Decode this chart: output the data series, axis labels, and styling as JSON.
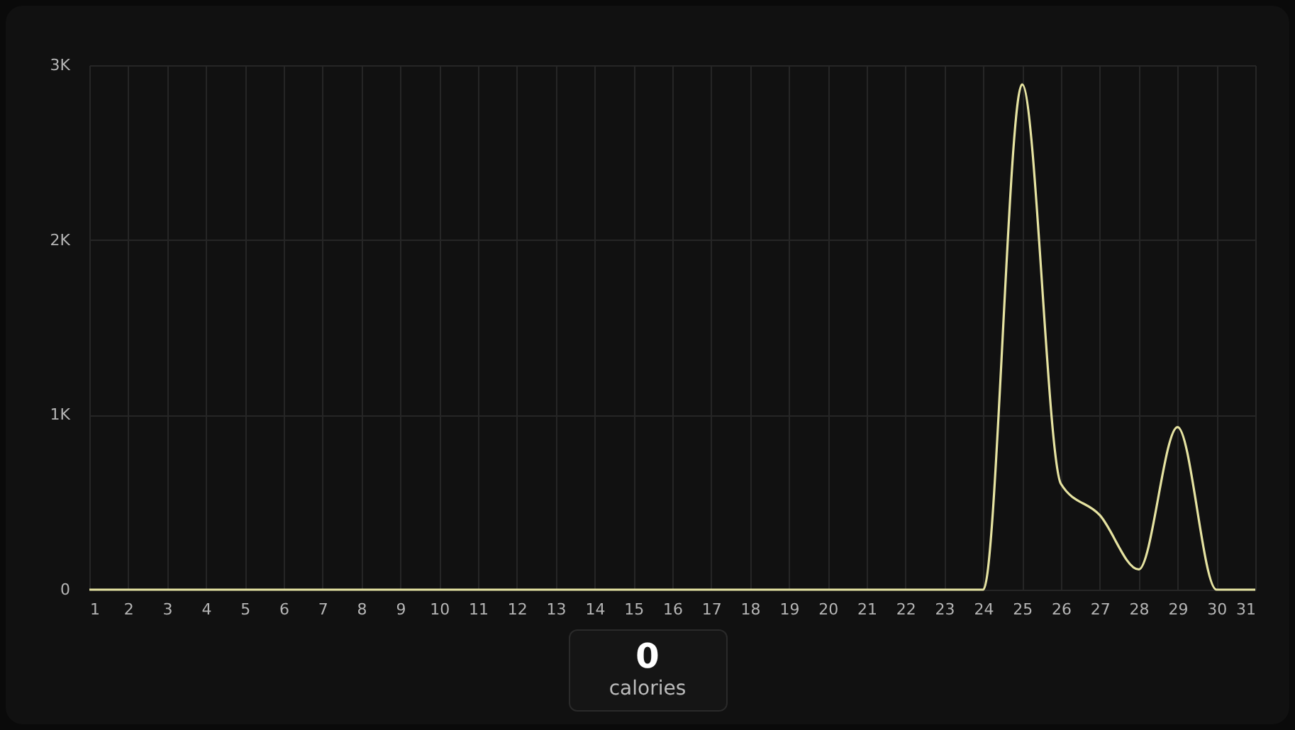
{
  "chart_data": {
    "type": "line",
    "x": [
      1,
      2,
      3,
      4,
      5,
      6,
      7,
      8,
      9,
      10,
      11,
      12,
      13,
      14,
      15,
      16,
      17,
      18,
      19,
      20,
      21,
      22,
      23,
      24,
      25,
      26,
      27,
      28,
      29,
      30,
      31
    ],
    "series": [
      {
        "color": "#e6e3a1",
        "values": [
          0,
          0,
          0,
          0,
          0,
          0,
          0,
          0,
          0,
          0,
          0,
          0,
          0,
          0,
          0,
          0,
          0,
          0,
          0,
          0,
          0,
          0,
          0,
          0,
          2890,
          605,
          426,
          116,
          930,
          0,
          0
        ]
      }
    ],
    "xlim": [
      1,
      31
    ],
    "xticks": [
      1,
      2,
      3,
      4,
      5,
      6,
      7,
      8,
      9,
      10,
      11,
      12,
      13,
      14,
      15,
      16,
      17,
      18,
      19,
      20,
      21,
      22,
      23,
      24,
      25,
      26,
      27,
      28,
      29,
      30,
      31
    ],
    "ylim": [
      0,
      3000
    ],
    "yticks": [
      {
        "value": 0,
        "label": "0"
      },
      {
        "value": 1000,
        "label": "1K"
      },
      {
        "value": 2000,
        "label": "2K"
      },
      {
        "value": 3000,
        "label": "3K"
      }
    ],
    "grid": true,
    "annotations": [
      "0",
      "calories"
    ]
  }
}
